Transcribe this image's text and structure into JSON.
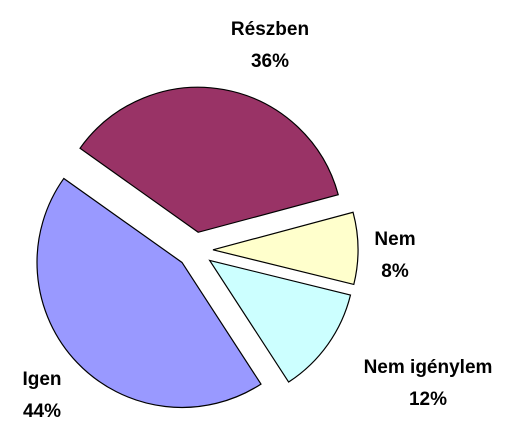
{
  "chart_data": {
    "type": "pie",
    "categories": [
      "Részben",
      "Nem",
      "Nem igénylem",
      "Igen"
    ],
    "values": [
      36,
      8,
      12,
      44
    ],
    "value_labels": [
      "36%",
      "8%",
      "12%",
      "44%"
    ],
    "colors": [
      "#993366",
      "#ffffcc",
      "#ccffff",
      "#9999ff"
    ]
  }
}
